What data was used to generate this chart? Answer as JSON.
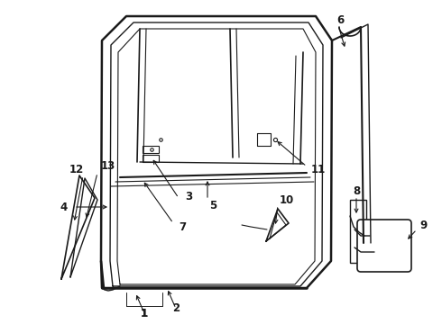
{
  "background_color": "#ffffff",
  "line_color": "#1a1a1a",
  "figsize": [
    4.9,
    3.6
  ],
  "dpi": 100,
  "font_size": 8.5,
  "font_weight": "bold"
}
